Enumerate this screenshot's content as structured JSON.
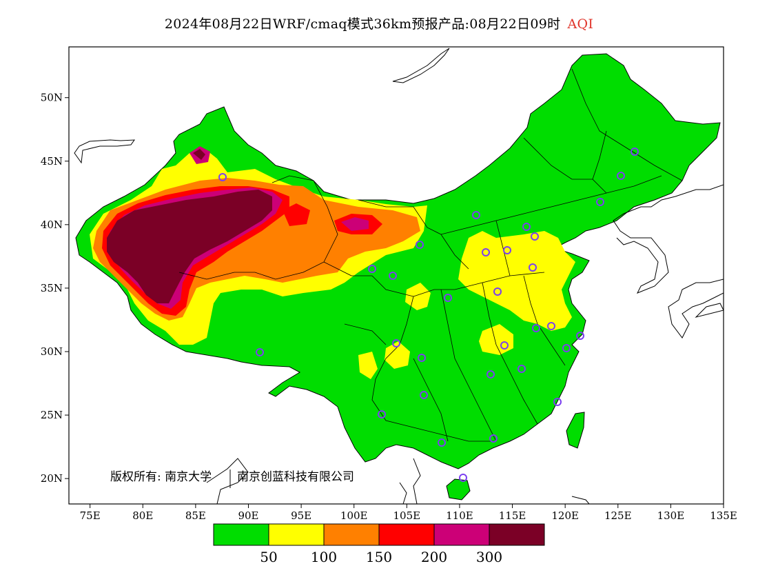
{
  "header": {
    "title": "2024年08月22日WRF/cmaq模式36km预报产品:08月22日09时",
    "variable": "AQI"
  },
  "map": {
    "lon_range": [
      73,
      135
    ],
    "lat_range": [
      18,
      54
    ],
    "x_ticks": [
      "75E",
      "80E",
      "85E",
      "90E",
      "95E",
      "100E",
      "105E",
      "110E",
      "115E",
      "120E",
      "125E",
      "130E",
      "135E"
    ],
    "y_ticks": [
      "20N",
      "25N",
      "30N",
      "35N",
      "40N",
      "45N",
      "50N"
    ],
    "x_tick_values": [
      75,
      80,
      85,
      90,
      95,
      100,
      105,
      110,
      115,
      120,
      125,
      130,
      135
    ],
    "y_tick_values": [
      20,
      25,
      30,
      35,
      40,
      45,
      50
    ],
    "copyright": "版权所有: 南京大学",
    "copyright_org": "南京创蓝科技有限公司"
  },
  "legend": {
    "colors": [
      "#00dd00",
      "#ffff00",
      "#ff8000",
      "#ff0000",
      "#cc0077",
      "#7b0026"
    ],
    "labels": [
      "50",
      "100",
      "150",
      "200",
      "300"
    ]
  }
}
